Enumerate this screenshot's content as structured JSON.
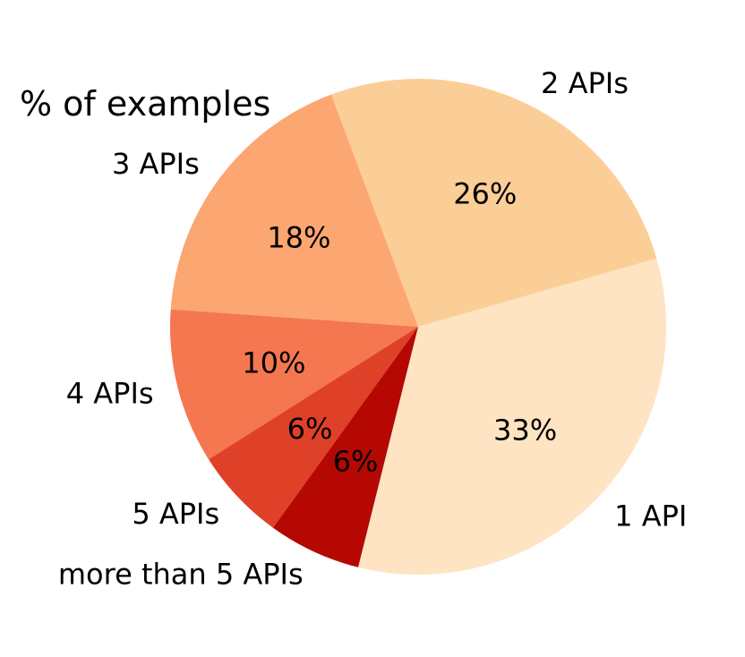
{
  "chart_data": {
    "type": "pie",
    "title": "% of examples",
    "start_angle_deg": -104,
    "direction": "counterclockwise",
    "slices": [
      {
        "label": "1 API",
        "value": 33,
        "pct_label": "33%",
        "color": "#fee4c3"
      },
      {
        "label": "2 APIs",
        "value": 26,
        "pct_label": "26%",
        "color": "#fcce97"
      },
      {
        "label": "3 APIs",
        "value": 18,
        "pct_label": "18%",
        "color": "#fca672"
      },
      {
        "label": "4 APIs",
        "value": 10,
        "pct_label": "10%",
        "color": "#f47750"
      },
      {
        "label": "5 APIs",
        "value": 6,
        "pct_label": "6%",
        "color": "#df4128"
      },
      {
        "label": "more than 5 APIs",
        "value": 6,
        "pct_label": "6%",
        "color": "#b60803"
      }
    ]
  }
}
